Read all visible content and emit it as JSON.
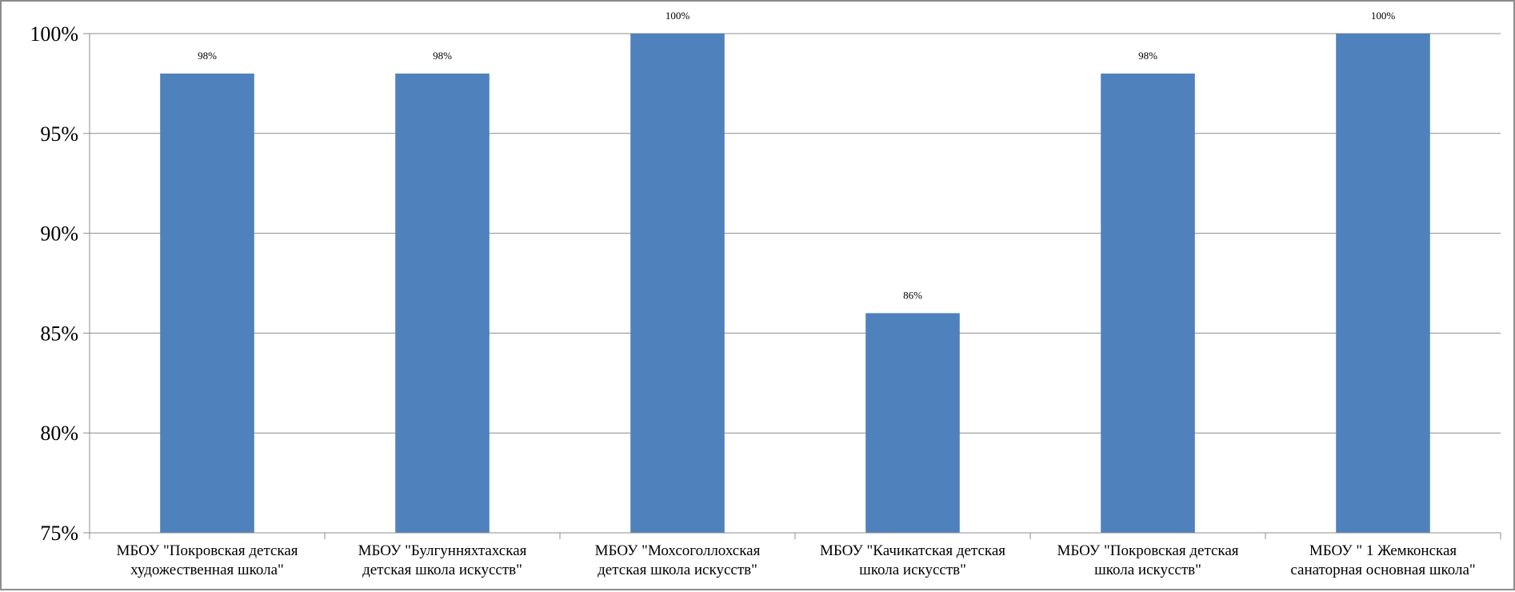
{
  "chart_data": {
    "type": "bar",
    "categories": [
      [
        "МБОУ \"Покровская детская",
        "художественная школа\""
      ],
      [
        "МБОУ \"Булгунняхтахская",
        "детская школа искусств\""
      ],
      [
        "МБОУ  \"Мохсоголлохская",
        "детская школа искусств\""
      ],
      [
        "МБОУ \"Качикатская детская",
        "школа искусств\""
      ],
      [
        "МБОУ \"Покровская детская",
        "школа искусств\""
      ],
      [
        "МБОУ \" 1 Жемконская",
        "санаторная основная школа\""
      ]
    ],
    "values": [
      98,
      98,
      100,
      86,
      98,
      100
    ],
    "data_labels": [
      "98%",
      "98%",
      "100%",
      "86%",
      "98%",
      "100%"
    ],
    "ylim": [
      75,
      100
    ],
    "yticks": [
      100,
      95,
      90,
      85,
      80,
      75
    ],
    "ytick_labels": [
      "100%",
      "95%",
      "90%",
      "85%",
      "80%",
      "75%"
    ],
    "grid": true,
    "bar_color": "#4f81bd",
    "title": "",
    "xlabel": "",
    "ylabel": ""
  }
}
